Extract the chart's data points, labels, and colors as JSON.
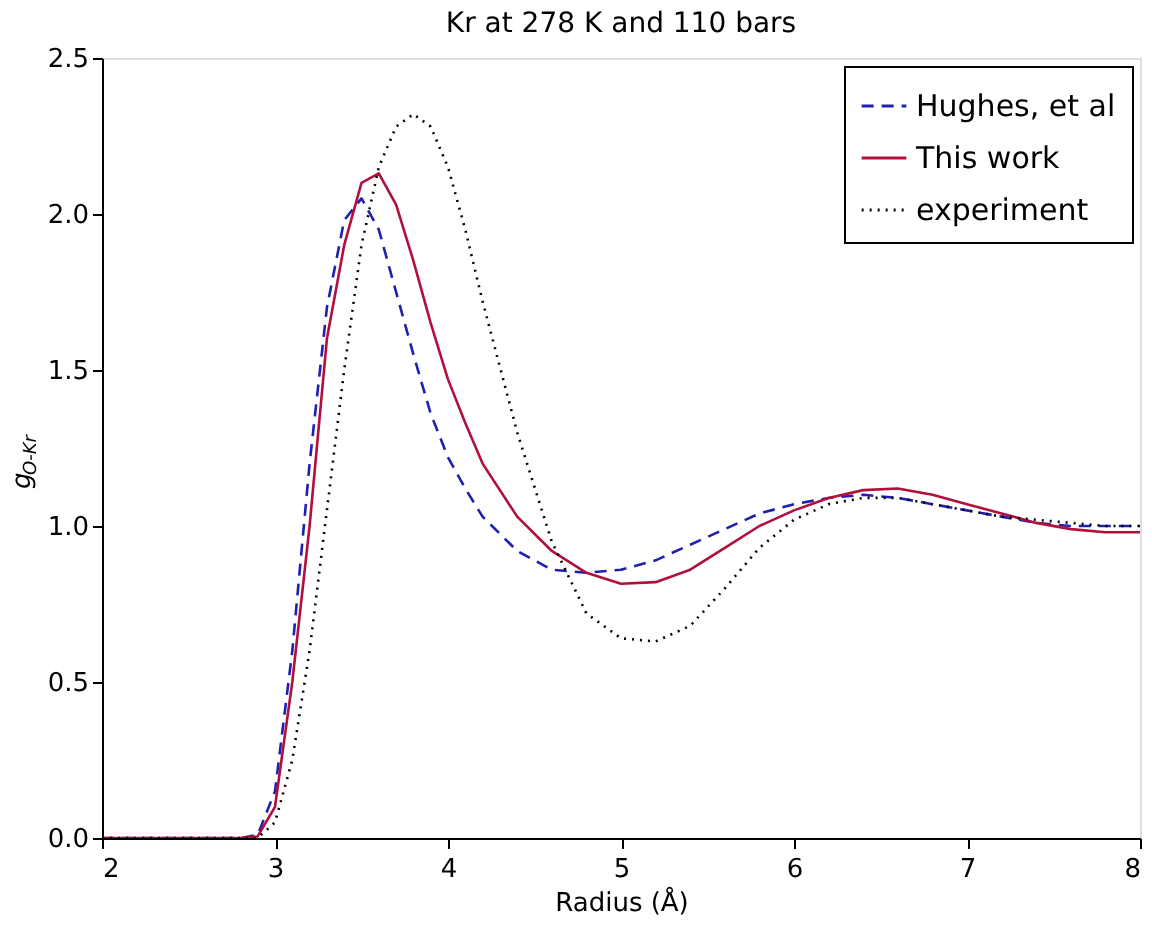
{
  "chart_data": {
    "type": "line",
    "title": "Kr at 278 K and 110 bars",
    "xlabel": "Radius (Å)",
    "ylabel": "g$_{O-Kr}$",
    "x": [
      2.0,
      2.8,
      2.9,
      3.0,
      3.1,
      3.2,
      3.3,
      3.4,
      3.5,
      3.6,
      3.7,
      3.8,
      3.9,
      4.0,
      4.1,
      4.2,
      4.4,
      4.6,
      4.8,
      5.0,
      5.2,
      5.4,
      5.6,
      5.8,
      6.0,
      6.2,
      6.4,
      6.6,
      6.8,
      7.0,
      7.2,
      7.4,
      7.6,
      7.8,
      8.0
    ],
    "series": [
      {
        "name": "Hughes, et al",
        "color": "#2020b0",
        "line_style": "dashed",
        "values": [
          0,
          0,
          0.01,
          0.15,
          0.6,
          1.2,
          1.7,
          1.98,
          2.05,
          1.95,
          1.75,
          1.55,
          1.36,
          1.22,
          1.12,
          1.03,
          0.92,
          0.86,
          0.85,
          0.86,
          0.89,
          0.94,
          0.99,
          1.04,
          1.07,
          1.09,
          1.1,
          1.09,
          1.07,
          1.05,
          1.03,
          1.01,
          1.0,
          1.0,
          1.0
        ]
      },
      {
        "name": "This work",
        "color": "#b0103a",
        "line_style": "solid",
        "values": [
          0,
          0,
          0.005,
          0.1,
          0.5,
          1.0,
          1.6,
          1.9,
          2.1,
          2.13,
          2.03,
          1.85,
          1.65,
          1.47,
          1.33,
          1.2,
          1.03,
          0.92,
          0.85,
          0.815,
          0.82,
          0.86,
          0.93,
          1.0,
          1.05,
          1.09,
          1.115,
          1.12,
          1.1,
          1.07,
          1.04,
          1.01,
          0.99,
          0.98,
          0.98
        ]
      },
      {
        "name": "experiment",
        "color": "#000000",
        "line_style": "dotted",
        "values": [
          0,
          0,
          0,
          0.05,
          0.25,
          0.6,
          1.05,
          1.5,
          1.9,
          2.15,
          2.28,
          2.32,
          2.28,
          2.15,
          1.95,
          1.72,
          1.3,
          0.95,
          0.72,
          0.64,
          0.63,
          0.68,
          0.8,
          0.93,
          1.02,
          1.07,
          1.09,
          1.09,
          1.07,
          1.05,
          1.03,
          1.02,
          1.01,
          1.0,
          1.0
        ]
      }
    ],
    "xlim": [
      2,
      8
    ],
    "xticks": [
      2,
      3,
      4,
      5,
      6,
      7,
      8
    ],
    "ylim": [
      0,
      2.5
    ],
    "yticks": [
      {
        "value": 0,
        "label": "0.0"
      },
      0.5,
      {
        "value": 1,
        "label": "1.0"
      },
      1.5,
      {
        "value": 2,
        "label": "2.0"
      },
      2.5
    ],
    "grid": false,
    "legend": "top right",
    "marker": "none"
  }
}
